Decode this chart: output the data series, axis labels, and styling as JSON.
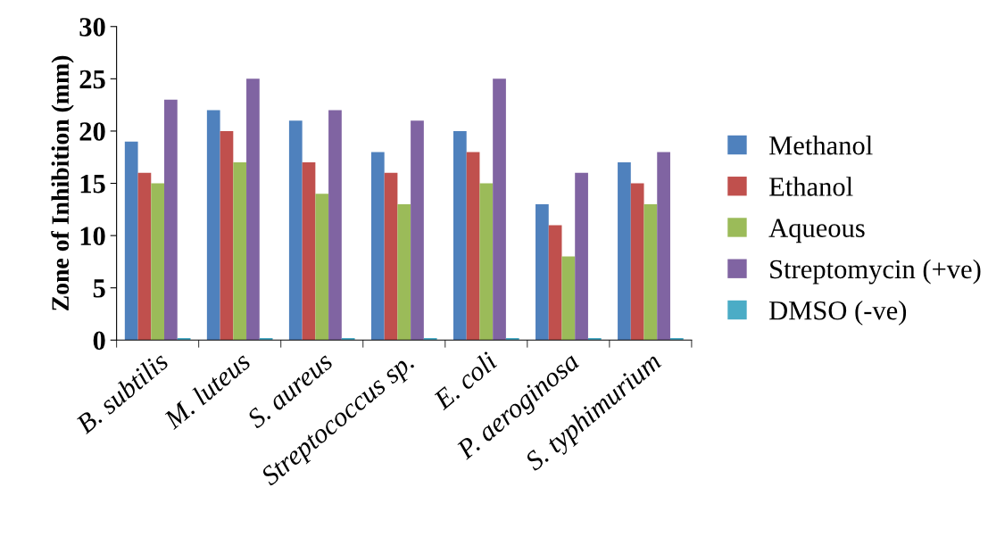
{
  "chart_data": {
    "type": "bar",
    "ylabel": "Zone of Inhibition (mm)",
    "categories": [
      "B. subtilis",
      "M. luteus",
      "S. aureus",
      "Streptococcus sp.",
      "E. coli",
      "P. aeroginosa",
      "S. typhimurium"
    ],
    "series": [
      {
        "name": "Methanol",
        "color": "#4f81bd",
        "values": [
          19,
          22,
          21,
          18,
          20,
          13,
          17
        ]
      },
      {
        "name": "Ethanol",
        "color": "#c0504d",
        "values": [
          16,
          20,
          17,
          16,
          18,
          11,
          15
        ]
      },
      {
        "name": "Aqueous",
        "color": "#9bbb59",
        "values": [
          15,
          17,
          14,
          13,
          15,
          8,
          13
        ]
      },
      {
        "name": "Streptomycin (+ve)",
        "color": "#8064a2",
        "values": [
          23,
          25,
          22,
          21,
          25,
          16,
          18
        ]
      },
      {
        "name": "DMSO (-ve)",
        "color": "#4bacc6",
        "values": [
          0.2,
          0.2,
          0.2,
          0.2,
          0.2,
          0.2,
          0.2
        ]
      }
    ],
    "ylim": [
      0,
      30
    ],
    "yticks": [
      0,
      5,
      10,
      15,
      20,
      25,
      30
    ],
    "grid": false,
    "legend": "right"
  }
}
